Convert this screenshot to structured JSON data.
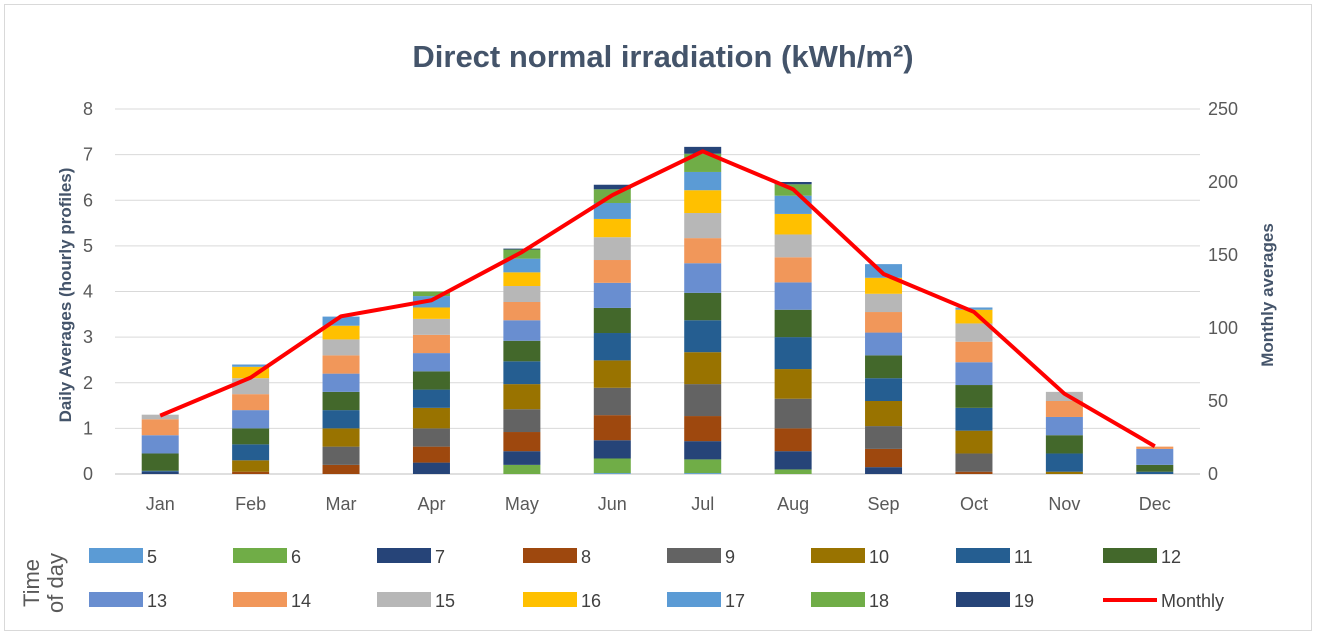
{
  "chart_data": {
    "type": "bar",
    "title": "Direct normal irradiation (kWh/m²)",
    "ylabel": "Daily Averages (hourly profiles)",
    "y2label": "Monthly averages",
    "legend_title": "Time of day",
    "legend_position": "bottom",
    "grid": true,
    "ylim": [
      0,
      8
    ],
    "y2lim": [
      0,
      250
    ],
    "yticks": [
      "0",
      "1",
      "2",
      "3",
      "4",
      "5",
      "6",
      "7",
      "8"
    ],
    "y2ticks": [
      "0",
      "50",
      "100",
      "150",
      "200",
      "250"
    ],
    "categories": [
      "Jan",
      "Feb",
      "Mar",
      "Apr",
      "May",
      "Jun",
      "Jul",
      "Aug",
      "Sep",
      "Oct",
      "Nov",
      "Dec"
    ],
    "series": [
      {
        "name": "5",
        "color": "#5b9bd5",
        "values": [
          0,
          0,
          0,
          0,
          0,
          0.02,
          0.02,
          0,
          0,
          0,
          0,
          0
        ]
      },
      {
        "name": "6",
        "color": "#70ad47",
        "values": [
          0,
          0,
          0,
          0,
          0.2,
          0.32,
          0.3,
          0.1,
          0,
          0,
          0,
          0
        ]
      },
      {
        "name": "7",
        "color": "#264478",
        "values": [
          0.05,
          0,
          0,
          0.25,
          0.3,
          0.4,
          0.4,
          0.4,
          0.15,
          0,
          0,
          0
        ]
      },
      {
        "name": "8",
        "color": "#9e480e",
        "values": [
          0,
          0.05,
          0.2,
          0.35,
          0.42,
          0.55,
          0.55,
          0.5,
          0.4,
          0.05,
          0,
          0
        ]
      },
      {
        "name": "9",
        "color": "#636363",
        "values": [
          0,
          0,
          0.4,
          0.4,
          0.5,
          0.6,
          0.7,
          0.65,
          0.5,
          0.4,
          0,
          0
        ]
      },
      {
        "name": "10",
        "color": "#997300",
        "values": [
          0,
          0.25,
          0.4,
          0.45,
          0.55,
          0.6,
          0.7,
          0.65,
          0.55,
          0.5,
          0.05,
          0
        ]
      },
      {
        "name": "11",
        "color": "#255e91",
        "values": [
          0.02,
          0.35,
          0.4,
          0.4,
          0.5,
          0.6,
          0.7,
          0.7,
          0.5,
          0.5,
          0.4,
          0.05
        ]
      },
      {
        "name": "12",
        "color": "#43682b",
        "values": [
          0.38,
          0.35,
          0.4,
          0.4,
          0.45,
          0.55,
          0.6,
          0.6,
          0.5,
          0.5,
          0.4,
          0.15
        ]
      },
      {
        "name": "13",
        "color": "#698ed0",
        "values": [
          0.4,
          0.4,
          0.4,
          0.4,
          0.45,
          0.55,
          0.65,
          0.6,
          0.5,
          0.5,
          0.4,
          0.35
        ]
      },
      {
        "name": "14",
        "color": "#f1975a",
        "values": [
          0.35,
          0.35,
          0.4,
          0.4,
          0.4,
          0.5,
          0.55,
          0.55,
          0.45,
          0.45,
          0.35,
          0.05
        ]
      },
      {
        "name": "15",
        "color": "#b7b7b7",
        "values": [
          0.1,
          0.35,
          0.35,
          0.35,
          0.35,
          0.5,
          0.55,
          0.5,
          0.4,
          0.4,
          0.2,
          0
        ]
      },
      {
        "name": "16",
        "color": "#ffc000",
        "values": [
          0,
          0.25,
          0.3,
          0.25,
          0.3,
          0.4,
          0.5,
          0.45,
          0.35,
          0.3,
          0,
          0
        ]
      },
      {
        "name": "17",
        "color": "#5b9bd5",
        "values": [
          0,
          0.05,
          0.2,
          0.25,
          0.3,
          0.35,
          0.4,
          0.4,
          0.3,
          0.05,
          0,
          0
        ]
      },
      {
        "name": "18",
        "color": "#70ad47",
        "values": [
          0,
          0,
          0,
          0.1,
          0.2,
          0.3,
          0.4,
          0.25,
          0,
          0,
          0,
          0
        ]
      },
      {
        "name": "19",
        "color": "#264478",
        "values": [
          0,
          0,
          0,
          0,
          0.02,
          0.1,
          0.15,
          0.05,
          0,
          0,
          0,
          0
        ]
      }
    ],
    "line_series": {
      "name": "Monthly",
      "color": "#ff0000",
      "axis": "y2",
      "values": [
        40,
        66,
        108,
        119,
        152,
        191,
        221,
        195,
        137,
        111,
        55,
        19
      ]
    }
  }
}
